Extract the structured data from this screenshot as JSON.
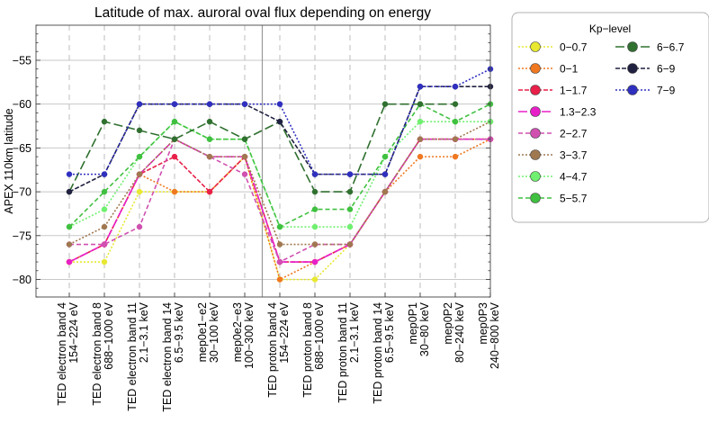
{
  "chart_data": {
    "type": "line",
    "title": "Latitude of max. auroral oval flux depending on energy",
    "xlabel": "",
    "ylabel": "APEX 110km latitude",
    "ylim": [
      -82,
      -51
    ],
    "yticks": [
      -80,
      -75,
      -70,
      -65,
      -60,
      -55
    ],
    "grid": true,
    "legend_title": "Kp−level",
    "legend_position": "outside-right",
    "categories": [
      [
        "TED electron band 4",
        "154−224 eV"
      ],
      [
        "TED electron band 8",
        "688−1000 eV"
      ],
      [
        "TED electron band 11",
        "2.1−3.1 keV"
      ],
      [
        "TED electron band 14",
        "6.5−9.5 keV"
      ],
      [
        "mep0e1−e2",
        "30−100 keV"
      ],
      [
        "mep0e2−e3",
        "100−300 keV"
      ],
      [
        "TED proton band 4",
        "154−224 eV"
      ],
      [
        "TED proton band 8",
        "688−1000 eV"
      ],
      [
        "TED proton band 11",
        "2.1−3.1 keV"
      ],
      [
        "TED proton band 14",
        "6.5−9.5 keV"
      ],
      [
        "mep0P1",
        "30−80 keV"
      ],
      [
        "mep0P2",
        "80−240 keV"
      ],
      [
        "mep0P3",
        "240−800 keV"
      ]
    ],
    "series": [
      {
        "name": "0−0.7",
        "color": "#e8e832",
        "dash": "2,2",
        "values": [
          -78,
          -78,
          -70,
          -70,
          -70,
          -66,
          -80,
          -80,
          -76,
          -70,
          -64,
          -64,
          -64
        ]
      },
      {
        "name": "0−1",
        "color": "#f07820",
        "dash": "2,2",
        "values": [
          -78,
          -76,
          -68,
          -70,
          -70,
          -66,
          -80,
          -78,
          -76,
          -70,
          -66,
          -66,
          -64
        ]
      },
      {
        "name": "1−1.7",
        "color": "#e8204a",
        "dash": "5,2",
        "values": [
          -78,
          -76,
          -68,
          -66,
          -70,
          -66,
          -78,
          -78,
          -76,
          -70,
          -64,
          -64,
          -64
        ]
      },
      {
        "name": "1.3−2.3",
        "color": "#e820c8",
        "dash": "10,3",
        "values": [
          -78,
          -76,
          -68,
          -64,
          -66,
          -66,
          -78,
          -78,
          -76,
          -70,
          -64,
          -64,
          -64
        ]
      },
      {
        "name": "2−2.7",
        "color": "#d050b0",
        "dash": "5,3",
        "values": [
          -76,
          -76,
          -74,
          -64,
          -66,
          -68,
          -78,
          -76,
          -76,
          -70,
          -64,
          -64,
          -64
        ]
      },
      {
        "name": "3−3.7",
        "color": "#a07850",
        "dash": "2,2",
        "values": [
          -76,
          -74,
          -68,
          -64,
          -66,
          -66,
          -76,
          -76,
          -76,
          -70,
          -64,
          -64,
          -62
        ]
      },
      {
        "name": "4−4.7",
        "color": "#70f070",
        "dash": "2,2",
        "values": [
          -74,
          -72,
          -66,
          -62,
          -64,
          -64,
          -74,
          -74,
          -74,
          -66,
          -62,
          -62,
          -62
        ]
      },
      {
        "name": "5−5.7",
        "color": "#40c040",
        "dash": "5,3",
        "values": [
          -74,
          -70,
          -66,
          -62,
          -64,
          -64,
          -74,
          -72,
          -72,
          -66,
          -60,
          -62,
          -60
        ]
      },
      {
        "name": "6−6.7",
        "color": "#307030",
        "dash": "10,4",
        "values": [
          -70,
          -62,
          -63,
          -64,
          -62,
          -64,
          -62,
          -70,
          -70,
          -60,
          -60,
          -60,
          null
        ]
      },
      {
        "name": "6−9",
        "color": "#202040",
        "dash": "5,2",
        "values": [
          -70,
          -68,
          -60,
          -60,
          -60,
          -60,
          -62,
          -68,
          -68,
          -68,
          -58,
          -58,
          -58
        ]
      },
      {
        "name": "7−9",
        "color": "#3030c0",
        "dash": "2,2",
        "values": [
          -68,
          -68,
          -60,
          -60,
          -60,
          -60,
          -60,
          -68,
          -68,
          -68,
          -58,
          -58,
          -56
        ]
      }
    ]
  }
}
